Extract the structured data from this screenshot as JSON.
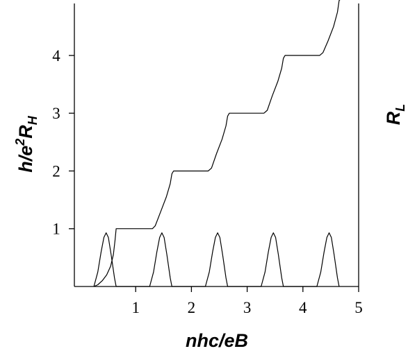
{
  "chart_data": {
    "type": "line",
    "xlabel": "nhc/eB",
    "ylabel_left": {
      "main": "h/e",
      "sup": "2",
      "var": "R",
      "sub": "H"
    },
    "ylabel_right": {
      "var": "R",
      "sub": "L"
    },
    "xlim": [
      -0.1,
      5
    ],
    "ylim": [
      0,
      4.9
    ],
    "x_ticks": [
      "1",
      "2",
      "3",
      "4",
      "5"
    ],
    "x_tick_values": [
      1,
      2,
      3,
      4,
      5
    ],
    "y_ticks": [
      "1",
      "2",
      "3",
      "4"
    ],
    "y_tick_values": [
      1,
      2,
      3,
      4
    ],
    "grid": false,
    "series": [
      {
        "x": [
          0.25,
          0.32,
          0.4,
          0.48,
          0.55,
          0.6,
          0.63,
          0.65,
          1.3,
          1.35,
          1.45,
          1.55,
          1.62,
          1.65,
          1.68,
          2.3,
          2.36,
          2.45,
          2.55,
          2.62,
          2.65,
          2.68,
          3.3,
          3.36,
          3.45,
          3.55,
          3.62,
          3.65,
          3.68,
          4.3,
          4.36,
          4.45,
          4.55,
          4.62,
          4.65,
          4.7,
          5.0
        ],
        "y": [
          0.0,
          0.03,
          0.1,
          0.2,
          0.35,
          0.55,
          0.8,
          1.0,
          1.0,
          1.05,
          1.3,
          1.55,
          1.78,
          1.95,
          2.0,
          2.0,
          2.05,
          2.3,
          2.55,
          2.78,
          2.95,
          3.0,
          3.0,
          3.05,
          3.3,
          3.55,
          3.78,
          3.95,
          4.0,
          4.0,
          4.05,
          4.25,
          4.5,
          4.75,
          4.95,
          5.0,
          5.0
        ]
      },
      {
        "x": [
          0.25,
          0.32,
          0.38,
          0.43,
          0.47,
          0.51,
          0.56,
          0.62,
          0.65,
          1.25,
          1.32,
          1.38,
          1.43,
          1.47,
          1.51,
          1.56,
          1.62,
          1.65,
          2.25,
          2.32,
          2.38,
          2.43,
          2.47,
          2.51,
          2.56,
          2.62,
          2.65,
          3.25,
          3.32,
          3.38,
          3.43,
          3.47,
          3.51,
          3.56,
          3.62,
          3.65,
          4.25,
          4.32,
          4.38,
          4.43,
          4.47,
          4.51,
          4.56,
          4.62,
          4.65
        ],
        "y": [
          0.0,
          0.25,
          0.6,
          0.85,
          0.93,
          0.85,
          0.55,
          0.15,
          0.0,
          0.0,
          0.25,
          0.6,
          0.85,
          0.93,
          0.85,
          0.55,
          0.15,
          0.0,
          0.0,
          0.25,
          0.6,
          0.85,
          0.93,
          0.85,
          0.55,
          0.15,
          0.0,
          0.0,
          0.25,
          0.6,
          0.85,
          0.93,
          0.85,
          0.55,
          0.15,
          0.0,
          0.0,
          0.25,
          0.6,
          0.85,
          0.93,
          0.85,
          0.55,
          0.15,
          0.0
        ]
      }
    ]
  }
}
